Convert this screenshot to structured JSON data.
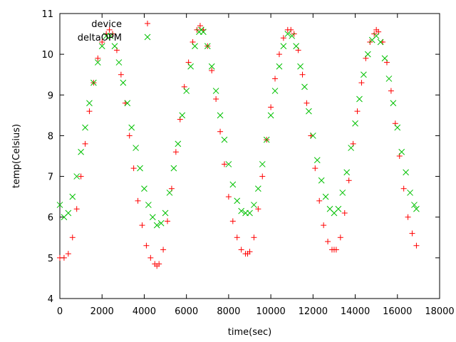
{
  "chart_data": {
    "type": "scatter",
    "title": "",
    "xlabel": "time(sec)",
    "ylabel": "temp(Celsius)",
    "xlim": [
      0,
      18000
    ],
    "ylim": [
      4,
      11
    ],
    "xticks": [
      0,
      2000,
      4000,
      6000,
      8000,
      10000,
      12000,
      14000,
      16000,
      18000
    ],
    "yticks": [
      4,
      5,
      6,
      7,
      8,
      9,
      10,
      11
    ],
    "xtick_labels": [
      "0",
      "2000",
      "4000",
      "6000",
      "8000",
      "10000",
      "12000",
      "14000",
      "16000",
      "18000"
    ],
    "ytick_labels": [
      "4",
      "5",
      "6",
      "7",
      "8",
      "9",
      "10",
      "11"
    ],
    "grid": false,
    "legend_position": "top-left",
    "series": [
      {
        "name": "device",
        "marker": "plus",
        "color": "#ff0000",
        "x": [
          0,
          200,
          400,
          600,
          800,
          1000,
          1200,
          1400,
          1600,
          1800,
          2000,
          2200,
          2350,
          2500,
          2700,
          2900,
          3100,
          3300,
          3500,
          3700,
          3900,
          4100,
          4300,
          4500,
          4600,
          4700,
          4900,
          5100,
          5300,
          5500,
          5700,
          5900,
          6100,
          6300,
          6500,
          6650,
          6800,
          7000,
          7200,
          7400,
          7600,
          7800,
          8000,
          8200,
          8400,
          8600,
          8800,
          8900,
          9000,
          9200,
          9400,
          9600,
          9800,
          10000,
          10200,
          10400,
          10600,
          10800,
          10950,
          11100,
          11300,
          11500,
          11700,
          11900,
          12100,
          12300,
          12500,
          12700,
          12900,
          13000,
          13100,
          13300,
          13500,
          13700,
          13900,
          14100,
          14300,
          14500,
          14700,
          14900,
          15000,
          15100,
          15300,
          15500,
          15700,
          15900,
          16100,
          16300,
          16500,
          16700,
          16900
        ],
        "y": [
          5.0,
          5.0,
          5.1,
          5.5,
          6.2,
          7.0,
          7.8,
          8.6,
          9.3,
          9.9,
          10.3,
          10.5,
          10.6,
          10.5,
          10.1,
          9.5,
          8.8,
          8.0,
          7.2,
          6.4,
          5.8,
          5.3,
          5.0,
          4.85,
          4.8,
          4.85,
          5.2,
          5.9,
          6.7,
          7.6,
          8.4,
          9.2,
          9.8,
          10.3,
          10.6,
          10.7,
          10.6,
          10.2,
          9.6,
          8.9,
          8.1,
          7.3,
          6.5,
          5.9,
          5.5,
          5.2,
          5.1,
          5.1,
          5.15,
          5.5,
          6.2,
          7.0,
          7.9,
          8.7,
          9.4,
          10.0,
          10.4,
          10.6,
          10.6,
          10.5,
          10.1,
          9.5,
          8.8,
          8.0,
          7.2,
          6.4,
          5.8,
          5.4,
          5.2,
          5.2,
          5.2,
          5.5,
          6.1,
          6.9,
          7.8,
          8.6,
          9.3,
          9.9,
          10.3,
          10.5,
          10.6,
          10.55,
          10.3,
          9.8,
          9.1,
          8.3,
          7.5,
          6.7,
          6.0,
          5.6,
          5.3
        ]
      },
      {
        "name": "deltaOPM",
        "marker": "x",
        "color": "#00c000",
        "x": [
          0,
          200,
          400,
          600,
          800,
          1000,
          1200,
          1400,
          1600,
          1800,
          2000,
          2200,
          2400,
          2600,
          2800,
          3000,
          3200,
          3400,
          3600,
          3800,
          4000,
          4200,
          4400,
          4600,
          4800,
          5000,
          5200,
          5400,
          5600,
          5800,
          6000,
          6200,
          6400,
          6600,
          6700,
          6800,
          7000,
          7200,
          7400,
          7600,
          7800,
          8000,
          8200,
          8400,
          8600,
          8800,
          9000,
          9200,
          9400,
          9600,
          9800,
          10000,
          10200,
          10400,
          10600,
          10800,
          11000,
          11200,
          11400,
          11600,
          11800,
          12000,
          12200,
          12400,
          12600,
          12800,
          13000,
          13200,
          13400,
          13600,
          13800,
          14000,
          14200,
          14400,
          14600,
          14800,
          15000,
          15200,
          15400,
          15600,
          15800,
          16000,
          16200,
          16400,
          16600,
          16800,
          16900
        ],
        "y": [
          6.3,
          6.0,
          6.1,
          6.5,
          7.0,
          7.6,
          8.2,
          8.8,
          9.3,
          9.8,
          10.2,
          10.45,
          10.45,
          10.2,
          9.8,
          9.3,
          8.8,
          8.2,
          7.7,
          7.2,
          6.7,
          6.3,
          6.0,
          5.8,
          5.85,
          6.1,
          6.6,
          7.2,
          7.8,
          8.5,
          9.1,
          9.7,
          10.2,
          10.55,
          10.6,
          10.55,
          10.2,
          9.7,
          9.1,
          8.5,
          7.9,
          7.3,
          6.8,
          6.4,
          6.15,
          6.1,
          6.1,
          6.3,
          6.7,
          7.3,
          7.9,
          8.5,
          9.1,
          9.7,
          10.2,
          10.5,
          10.45,
          10.2,
          9.7,
          9.2,
          8.6,
          8.0,
          7.4,
          6.9,
          6.5,
          6.2,
          6.1,
          6.2,
          6.6,
          7.1,
          7.7,
          8.3,
          8.9,
          9.5,
          10.0,
          10.35,
          10.45,
          10.3,
          9.9,
          9.4,
          8.8,
          8.2,
          7.6,
          7.1,
          6.6,
          6.3,
          6.2
        ]
      }
    ]
  }
}
